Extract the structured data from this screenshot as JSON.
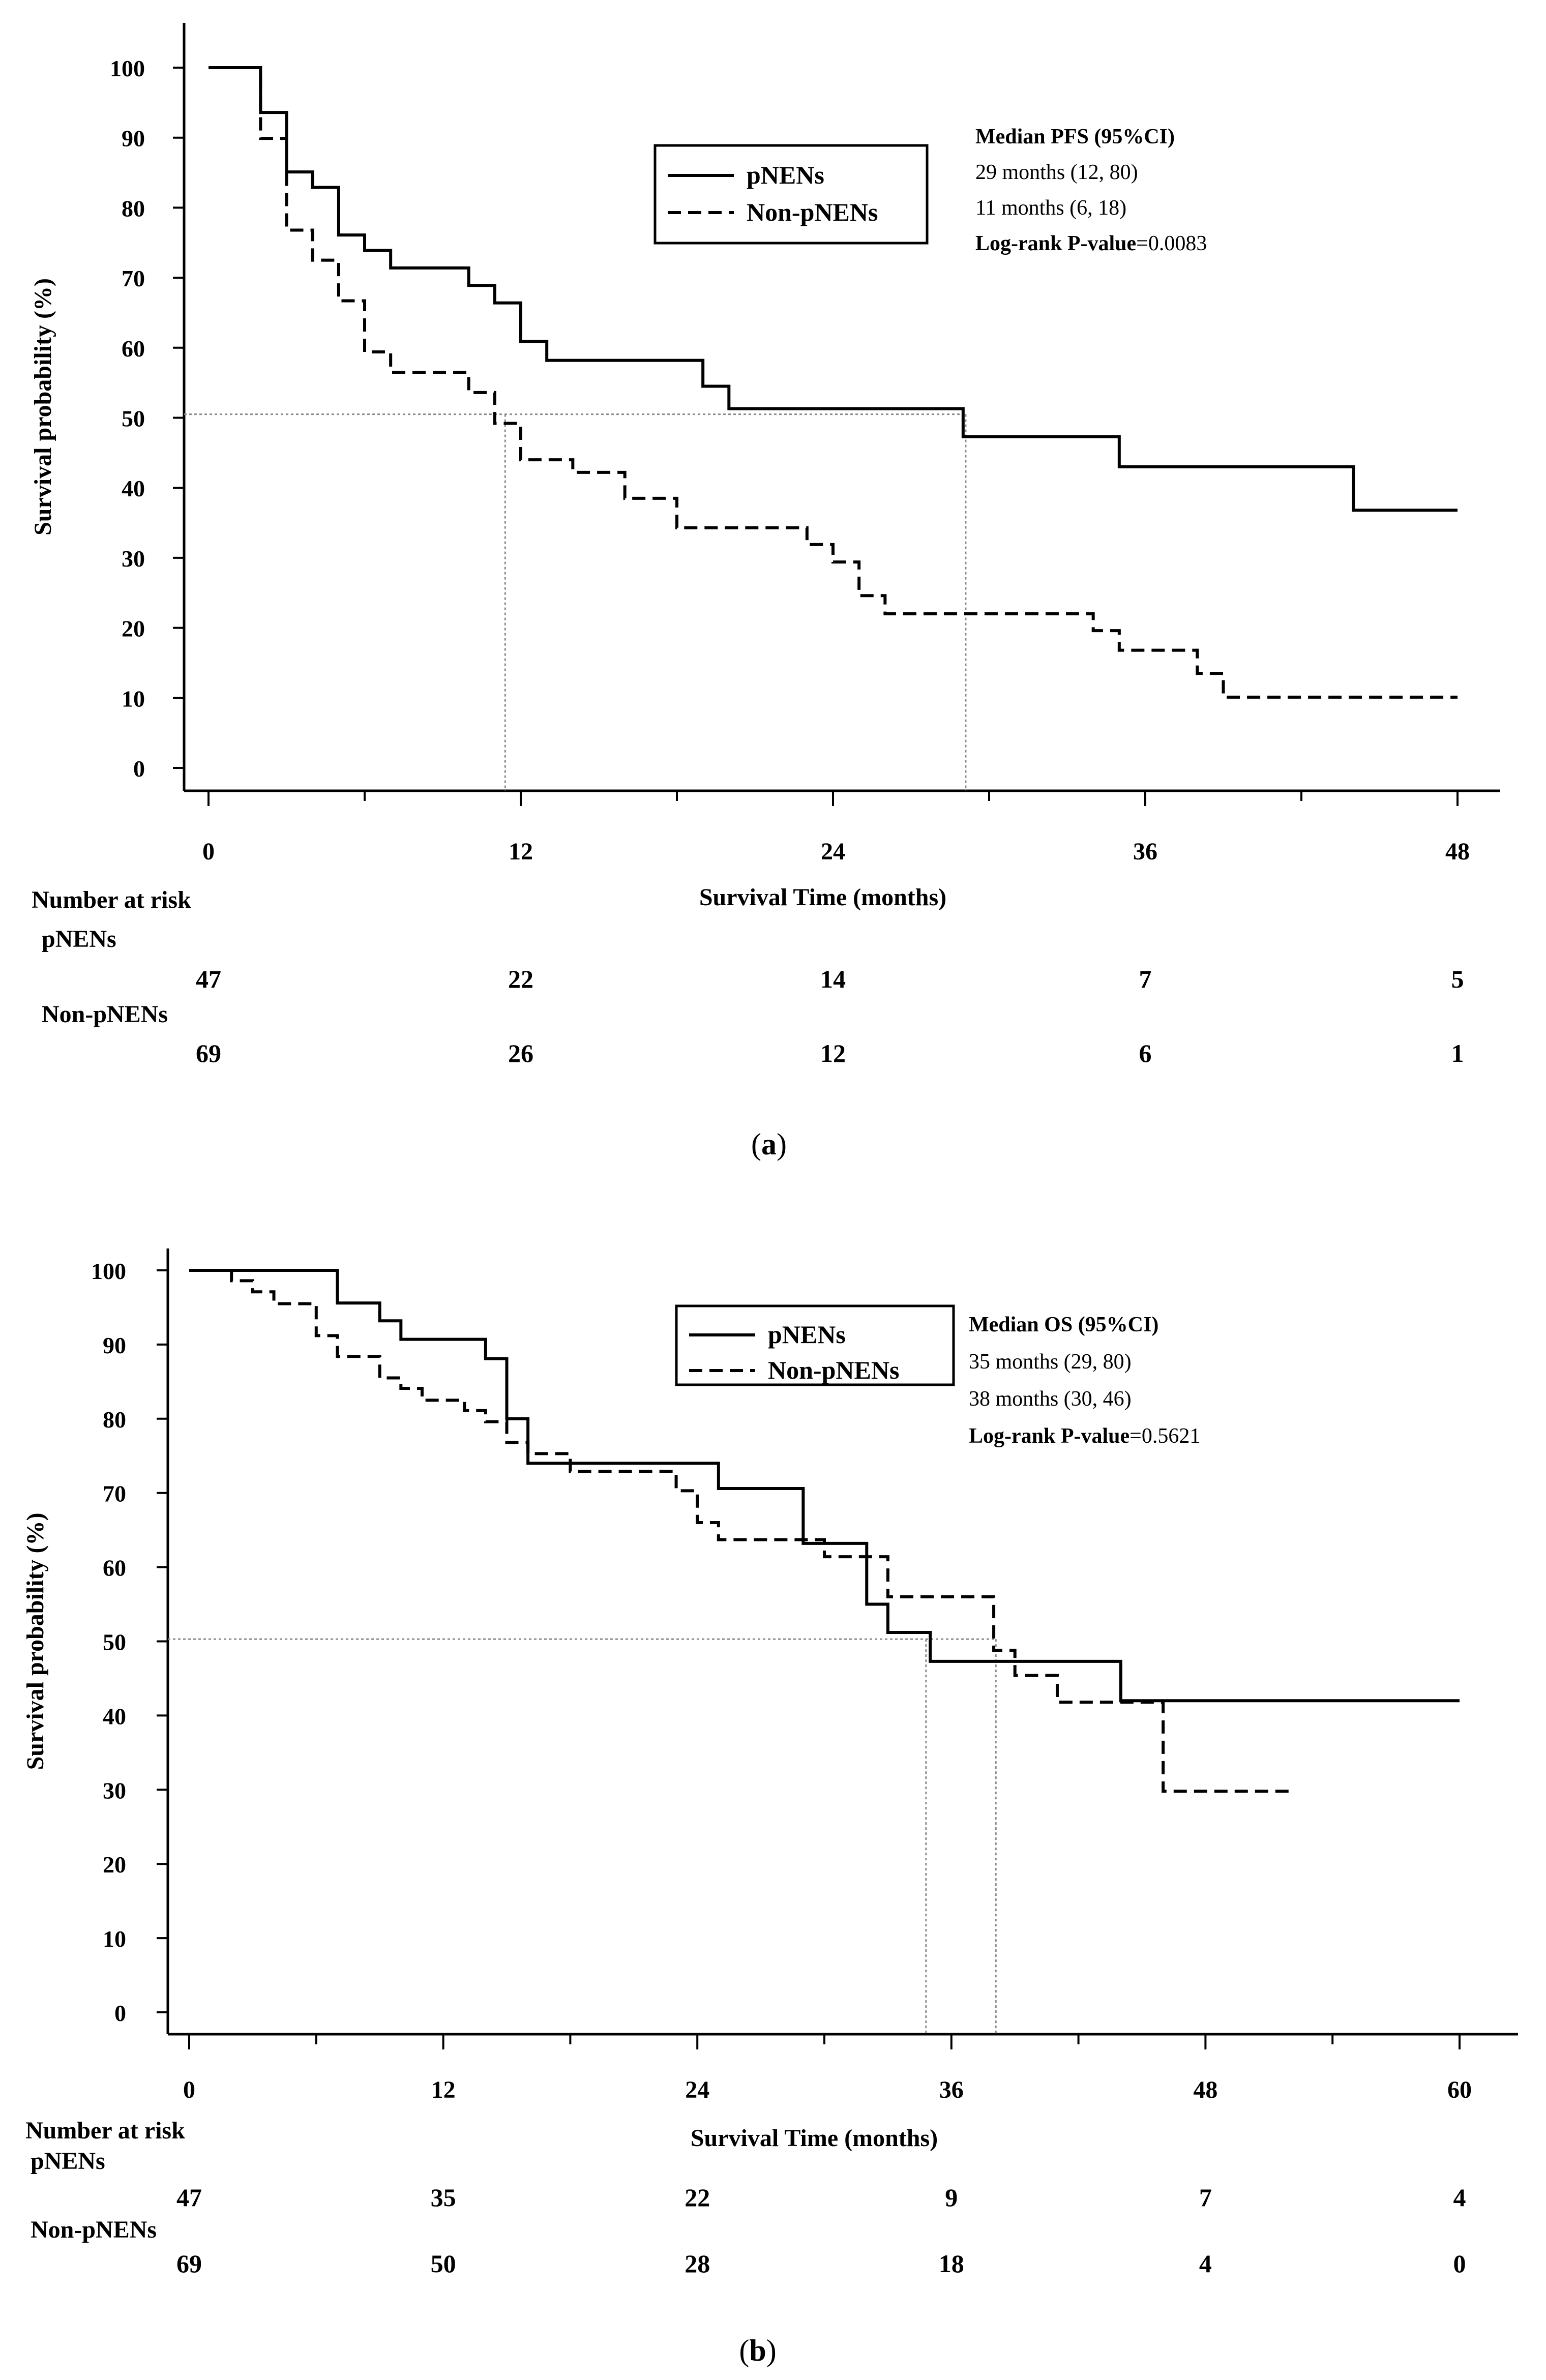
{
  "chart_data": [
    {
      "panel_label": "a",
      "type": "line",
      "subtype": "kaplan-meier",
      "xlabel": "Survival Time (months)",
      "ylabel": "Survival probability (%)",
      "xlim": [
        0,
        48
      ],
      "ylim": [
        0,
        100
      ],
      "xticks": [
        0,
        12,
        24,
        36,
        48
      ],
      "yticks": [
        0,
        10,
        20,
        30,
        40,
        50,
        60,
        70,
        80,
        90,
        100
      ],
      "legend": {
        "placement": "top-center",
        "entries": [
          "pNENs",
          "Non-pNENs"
        ]
      },
      "stats": {
        "title": "Median PFS (95%CI)",
        "lines": [
          "29 months (12, 80)",
          "11 months (6, 18)"
        ],
        "pvalue_label": "Log-rank P-value",
        "pvalue": "=0.0083"
      },
      "median_guides": {
        "y": 50.5,
        "x": [
          11.4,
          29.1
        ]
      },
      "series": [
        {
          "name": "pNENs",
          "style": "solid",
          "steps": [
            [
              0,
              100
            ],
            [
              2,
              93.6
            ],
            [
              3,
              85.1
            ],
            [
              4,
              82.9
            ],
            [
              5,
              76.1
            ],
            [
              6,
              73.9
            ],
            [
              7,
              71.4
            ],
            [
              10,
              68.9
            ],
            [
              11,
              66.4
            ],
            [
              12,
              60.9
            ],
            [
              13,
              58.2
            ],
            [
              19,
              54.5
            ],
            [
              20,
              51.3
            ],
            [
              29,
              47.3
            ],
            [
              35,
              43
            ],
            [
              44,
              36.8
            ],
            [
              48,
              36.8
            ]
          ]
        },
        {
          "name": "Non-pNENs",
          "style": "dashed",
          "steps": [
            [
              0,
              100
            ],
            [
              2,
              89.9
            ],
            [
              3,
              76.8
            ],
            [
              4,
              72.5
            ],
            [
              5,
              66.7
            ],
            [
              6,
              59.4
            ],
            [
              7,
              56.5
            ],
            [
              10,
              53.6
            ],
            [
              11,
              49.2
            ],
            [
              12,
              44
            ],
            [
              14,
              42.2
            ],
            [
              16,
              38.5
            ],
            [
              18,
              34.3
            ],
            [
              23,
              31.9
            ],
            [
              24,
              29.4
            ],
            [
              25,
              24.6
            ],
            [
              26,
              22
            ],
            [
              34,
              19.6
            ],
            [
              35,
              16.8
            ],
            [
              38,
              13.5
            ],
            [
              39,
              10.1
            ],
            [
              48,
              10.1
            ]
          ]
        }
      ],
      "risk_table": {
        "title": "Number at risk",
        "times": [
          0,
          12,
          24,
          36,
          48
        ],
        "rows": [
          {
            "label": "pNENs",
            "values": [
              "47",
              "22",
              "14",
              "7",
              "5"
            ]
          },
          {
            "label": "Non-pNENs",
            "values": [
              "69",
              "26",
              "12",
              "6",
              "1"
            ]
          }
        ]
      }
    },
    {
      "panel_label": "b",
      "type": "line",
      "subtype": "kaplan-meier",
      "xlabel": "Survival Time (months)",
      "ylabel": "Survival probability (%)",
      "xlim": [
        0,
        60
      ],
      "ylim": [
        0,
        100
      ],
      "xticks": [
        0,
        12,
        24,
        36,
        48,
        60
      ],
      "yticks": [
        0,
        10,
        20,
        30,
        40,
        50,
        60,
        70,
        80,
        90,
        100
      ],
      "legend": {
        "placement": "top-center",
        "entries": [
          "pNENs",
          "Non-pNENs"
        ]
      },
      "stats": {
        "title": "Median OS (95%CI)",
        "lines": [
          "35 months (29, 80)",
          "38 months (30, 46)"
        ],
        "pvalue_label": "Log-rank P-value",
        "pvalue": "=0.5621"
      },
      "median_guides": {
        "y": 50.3,
        "x": [
          34.8,
          38.1
        ]
      },
      "series": [
        {
          "name": "pNENs",
          "style": "solid",
          "steps": [
            [
              0,
              100
            ],
            [
              7,
              95.6
            ],
            [
              9,
              93.2
            ],
            [
              10,
              90.7
            ],
            [
              14,
              88.1
            ],
            [
              15,
              80
            ],
            [
              16,
              74
            ],
            [
              25,
              70.6
            ],
            [
              29,
              63.2
            ],
            [
              32,
              55
            ],
            [
              33,
              51.2
            ],
            [
              35,
              47.3
            ],
            [
              44,
              42
            ],
            [
              60,
              42
            ]
          ]
        },
        {
          "name": "Non-pNENs",
          "style": "dashed",
          "steps": [
            [
              0,
              100
            ],
            [
              2,
              98.6
            ],
            [
              3,
              97.1
            ],
            [
              4,
              95.5
            ],
            [
              6,
              91.2
            ],
            [
              7,
              88.4
            ],
            [
              9,
              85.5
            ],
            [
              10,
              84.1
            ],
            [
              11,
              82.5
            ],
            [
              13,
              81.1
            ],
            [
              14,
              79.6
            ],
            [
              15,
              76.8
            ],
            [
              16,
              75.3
            ],
            [
              18,
              72.9
            ],
            [
              23,
              70.3
            ],
            [
              24,
              66
            ],
            [
              25,
              63.7
            ],
            [
              30,
              61.4
            ],
            [
              33,
              56
            ],
            [
              38,
              48.8
            ],
            [
              39,
              45.4
            ],
            [
              41,
              41.8
            ],
            [
              46,
              29.8
            ],
            [
              52,
              29.8
            ]
          ]
        }
      ],
      "risk_table": {
        "title": "Number at risk",
        "times": [
          0,
          12,
          24,
          36,
          48,
          60
        ],
        "rows": [
          {
            "label": "pNENs",
            "values": [
              "47",
              "35",
              "22",
              "9",
              "7",
              "4"
            ]
          },
          {
            "label": "Non-pNENs",
            "values": [
              "69",
              "50",
              "28",
              "18",
              "4",
              "0"
            ]
          }
        ]
      }
    }
  ]
}
